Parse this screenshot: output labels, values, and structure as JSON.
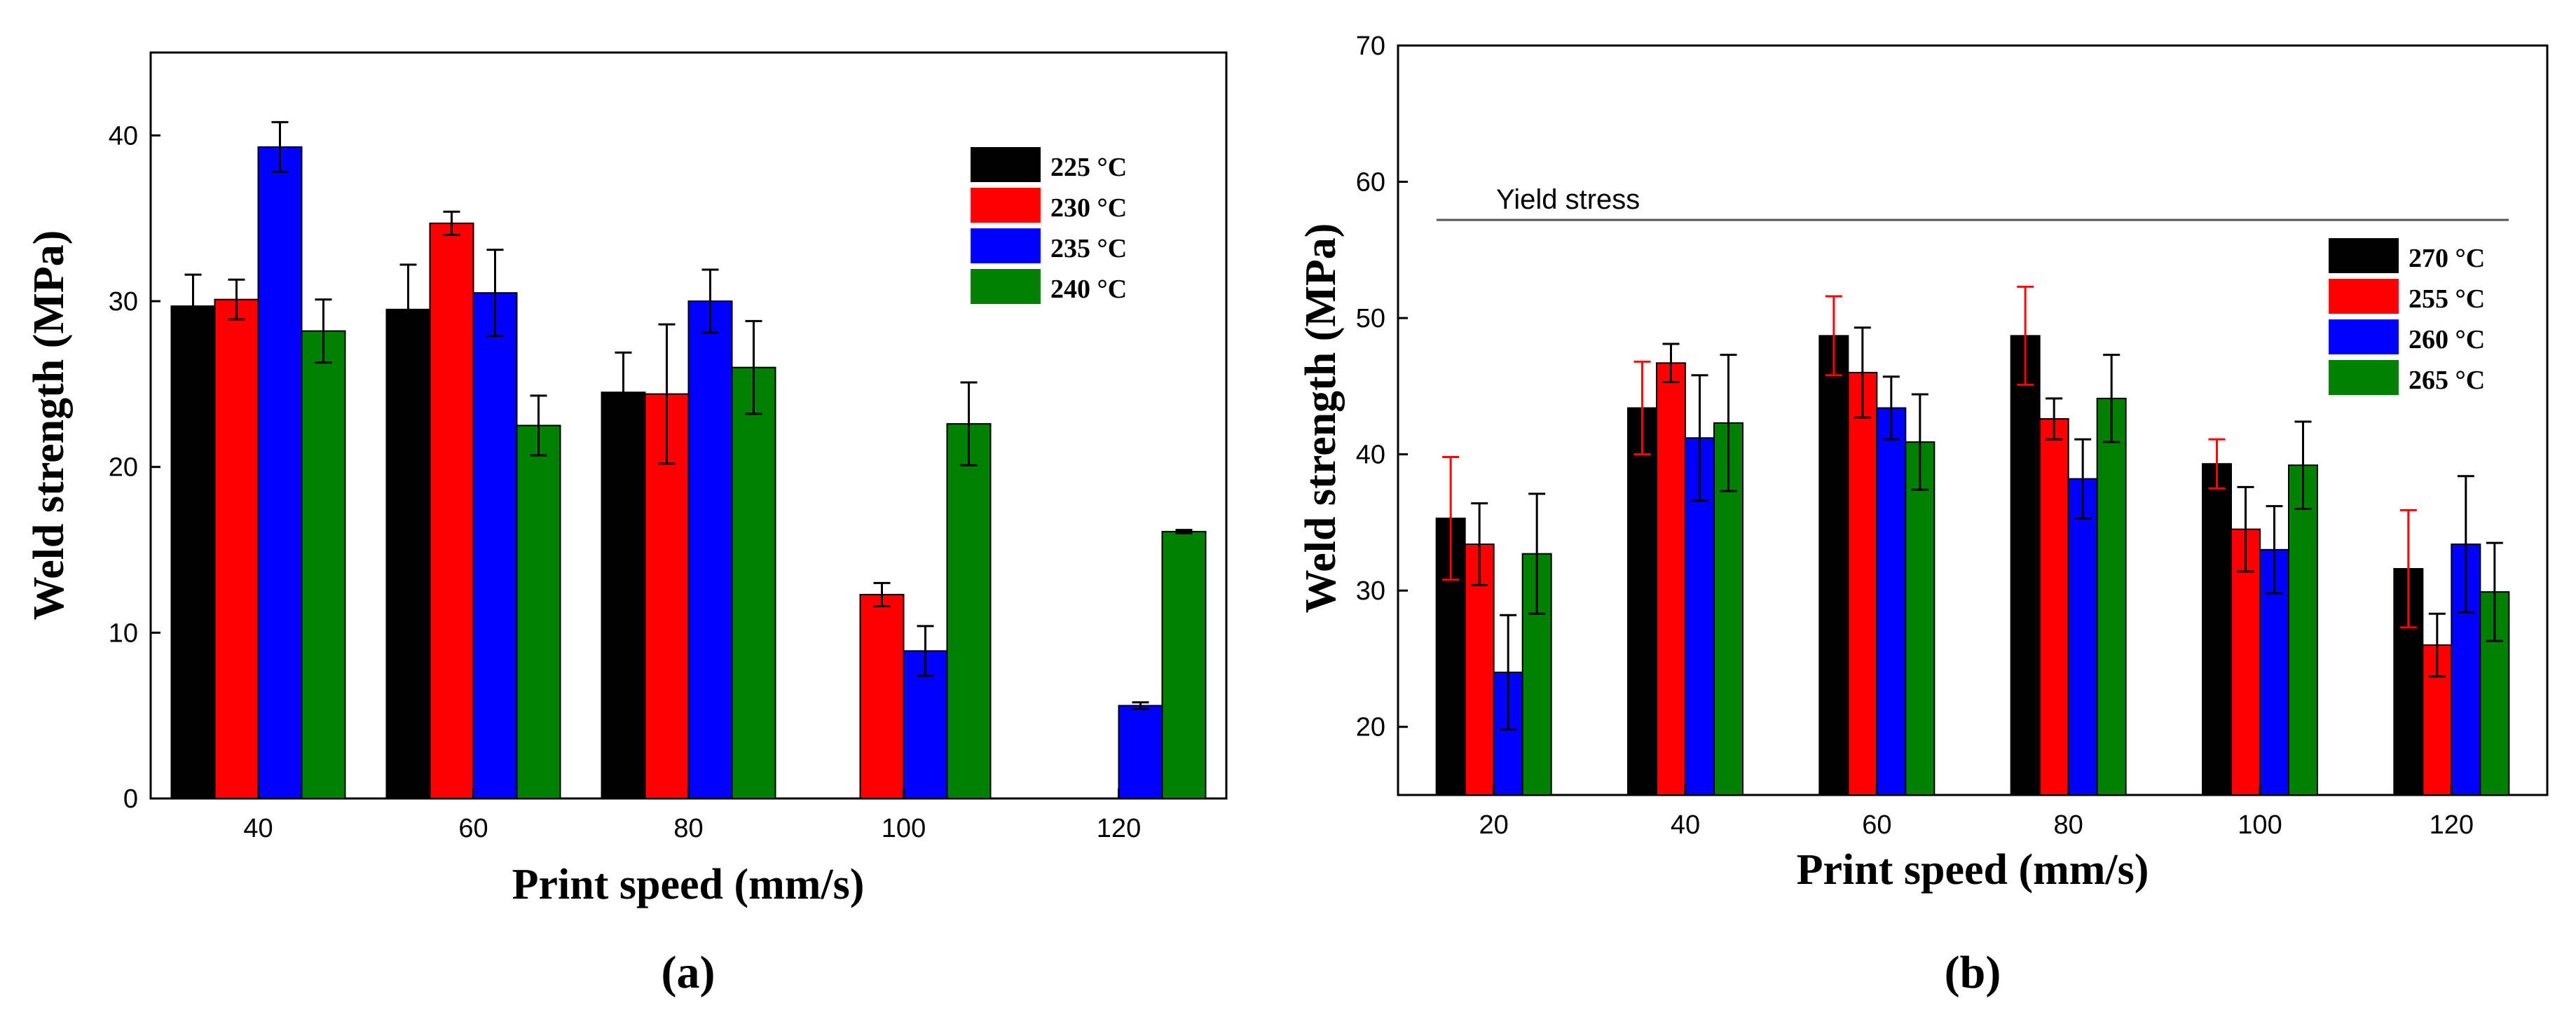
{
  "chart_data": [
    {
      "type": "bar",
      "panel": "a",
      "caption_open": "(",
      "caption_letter": "a",
      "caption_close": ")",
      "xlabel": "Print speed (mm/s)",
      "ylabel": "Weld strength (MPa)",
      "categories": [
        "40",
        "60",
        "80",
        "100",
        "120"
      ],
      "ylim": [
        0,
        45
      ],
      "yticks": [
        0,
        10,
        20,
        30,
        40
      ],
      "legend_position": "top-right",
      "series": [
        {
          "name": "225 °C",
          "color": "#000000",
          "error_color": "#000000",
          "values": [
            29.7,
            29.5,
            24.5,
            null,
            null
          ],
          "errors": [
            1.9,
            2.7,
            2.4,
            null,
            null
          ]
        },
        {
          "name": "230 °C",
          "color": "#ff0000",
          "error_color": "#000000",
          "values": [
            30.1,
            34.7,
            24.4,
            12.3,
            null
          ],
          "errors": [
            1.2,
            0.7,
            4.2,
            0.7,
            null
          ]
        },
        {
          "name": "235 °C",
          "color": "#0000ff",
          "error_color": "#000000",
          "values": [
            39.3,
            30.5,
            30.0,
            8.9,
            5.6
          ],
          "errors": [
            1.5,
            2.6,
            1.9,
            1.5,
            0.2
          ]
        },
        {
          "name": "240 °C",
          "color": "#008000",
          "error_color": "#000000",
          "values": [
            28.2,
            22.5,
            26.0,
            22.6,
            16.1
          ],
          "errors": [
            1.9,
            1.8,
            2.8,
            2.5,
            0.1
          ]
        }
      ]
    },
    {
      "type": "bar",
      "panel": "b",
      "caption_open": "(",
      "caption_letter": "b",
      "caption_close": ")",
      "xlabel": "Print speed (mm/s)",
      "ylabel": "Weld strength (MPa)",
      "categories": [
        "20",
        "40",
        "60",
        "80",
        "100",
        "120"
      ],
      "ylim": [
        15,
        70
      ],
      "yticks": [
        20,
        30,
        40,
        50,
        60,
        70
      ],
      "legend_position": "right",
      "annotation": {
        "label": "Yield stress",
        "value": 57.2
      },
      "series": [
        {
          "name": "270 °C",
          "color": "#000000",
          "error_color": "#ff0000",
          "values": [
            35.3,
            43.4,
            48.7,
            48.7,
            39.3,
            31.6
          ],
          "errors": [
            4.5,
            3.4,
            2.9,
            3.6,
            1.8,
            4.3
          ]
        },
        {
          "name": "255 °C",
          "color": "#ff0000",
          "error_color": "#000000",
          "values": [
            33.4,
            46.7,
            46.0,
            42.6,
            34.5,
            26.0
          ],
          "errors": [
            3.0,
            1.4,
            3.3,
            1.5,
            3.1,
            2.3
          ]
        },
        {
          "name": "260 °C",
          "color": "#0000ff",
          "error_color": "#000000",
          "values": [
            24.0,
            41.2,
            43.4,
            38.2,
            33.0,
            33.4
          ],
          "errors": [
            4.2,
            4.6,
            2.3,
            2.9,
            3.2,
            5.0
          ]
        },
        {
          "name": "265 °C",
          "color": "#008000",
          "error_color": "#000000",
          "values": [
            32.7,
            42.3,
            40.9,
            44.1,
            39.2,
            29.9
          ],
          "errors": [
            4.4,
            5.0,
            3.5,
            3.2,
            3.2,
            3.6
          ]
        }
      ]
    }
  ]
}
